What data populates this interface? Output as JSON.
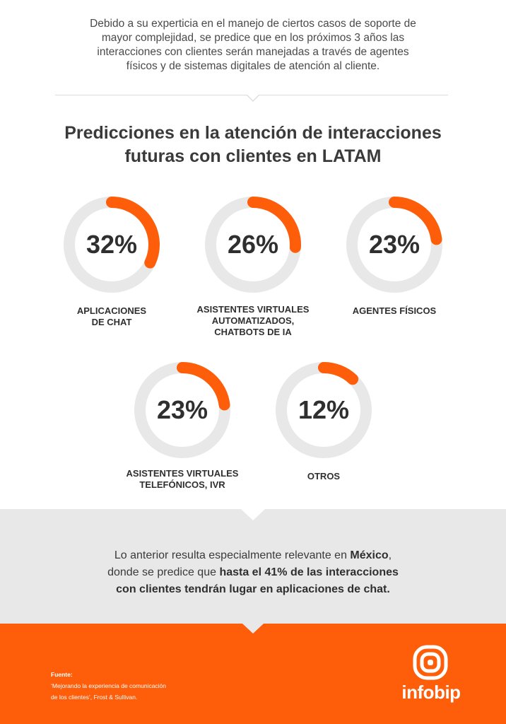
{
  "intro": {
    "lines": [
      "Debido a su experticia en el manejo de ciertos casos de soporte de",
      "mayor complejidad, se predice que en los próximos 3 años las",
      "interacciones con clientes serán manejadas a través de agentes",
      "físicos y de sistemas digitales de atención al cliente."
    ]
  },
  "heading": {
    "line1": "Predicciones en la atención de interacciones",
    "line2": "futuras con clientes en LATAM"
  },
  "colors": {
    "accent": "#fe5d0a",
    "track": "#e8e8e8",
    "gray_band": "#e8e8e8"
  },
  "chart_data": {
    "type": "pie",
    "title": "Predicciones en la atención de interacciones futuras con clientes en LATAM",
    "unit": "%",
    "items": [
      {
        "value": 32,
        "display": "32%",
        "label_lines": [
          "APLICACIONES",
          "DE CHAT"
        ]
      },
      {
        "value": 26,
        "display": "26%",
        "label_lines": [
          "ASISTENTES VIRTUALES",
          "AUTOMATIZADOS,",
          "CHATBOTS DE IA"
        ]
      },
      {
        "value": 23,
        "display": "23%",
        "label_lines": [
          "AGENTES FÍSICOS"
        ]
      },
      {
        "value": 23,
        "display": "23%",
        "label_lines": [
          "ASISTENTES VIRTUALES",
          "TELEFÓNICOS, IVR"
        ]
      },
      {
        "value": 12,
        "display": "12%",
        "label_lines": [
          "OTROS"
        ]
      }
    ]
  },
  "closing": {
    "line1_pre": "Lo anterior resulta especialmente relevante en ",
    "line1_bold": "México",
    "line1_post": ",",
    "line2_pre": "donde se predice que ",
    "line2_bold": "hasta el 41% de las interacciones",
    "line3_bold": "con clientes tendrán lugar en aplicaciones de chat."
  },
  "footer": {
    "source_title": "Fuente:",
    "source_line1": "‘Mejorando la experiencia de comunicación",
    "source_line2": "de los clientes’, Frost & Sullivan.",
    "brand": "infobip",
    "brand_icon": "infobip-logo-icon"
  }
}
